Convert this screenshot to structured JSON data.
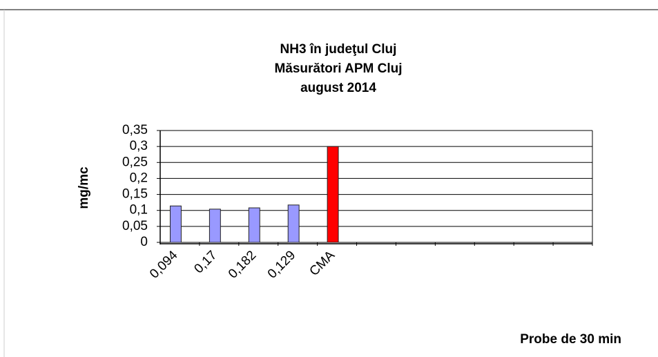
{
  "chart_data": {
    "type": "bar",
    "title": [
      "NH3 în judeţul Cluj",
      "Măsurători APM Cluj",
      "august 2014"
    ],
    "y_label": "mg/mc",
    "x_label": "Probe de 30 min",
    "categories": [
      "0,094",
      "0,17",
      "0,182",
      "0,129",
      "CMA",
      null,
      null,
      null,
      null,
      null,
      null
    ],
    "values": [
      0.114,
      0.104,
      0.108,
      0.117,
      0.3,
      null,
      null,
      null,
      null,
      null,
      null
    ],
    "colors": [
      "#9999ff",
      "#9999ff",
      "#9999ff",
      "#9999ff",
      "#ff0000",
      null,
      null,
      null,
      null,
      null,
      null
    ],
    "ylim": [
      0,
      0.35
    ],
    "yticks": [
      0,
      {
        "value": 0.05,
        "label": "0,05"
      },
      {
        "value": 0.1,
        "label": "0,1"
      },
      {
        "value": 0.15,
        "label": "0,15"
      },
      {
        "value": 0.2,
        "label": "0,2"
      },
      {
        "value": 0.25,
        "label": "0,25"
      },
      {
        "value": 0.3,
        "label": "0,3"
      },
      {
        "value": 0.35,
        "label": "0,35"
      }
    ],
    "grid": true
  }
}
